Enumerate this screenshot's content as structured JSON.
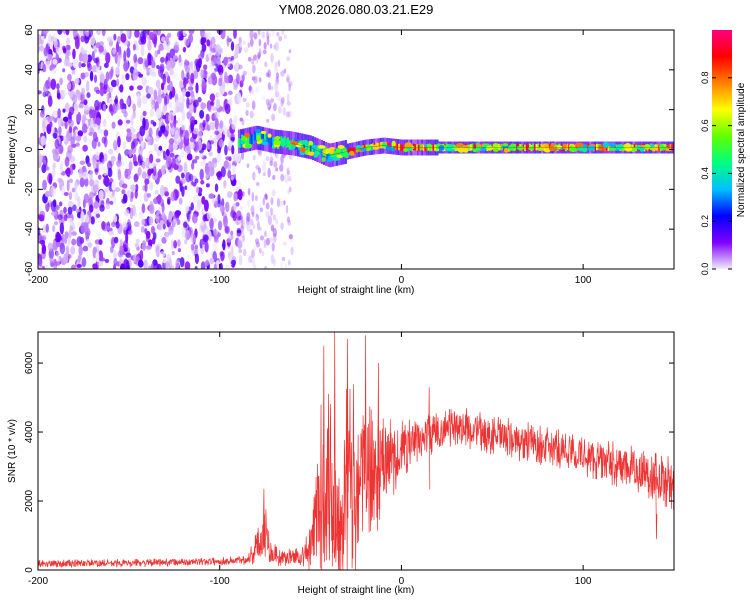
{
  "figure": {
    "title": "YM08.2026.080.03.21.E29"
  },
  "chart_data": [
    {
      "type": "heatmap",
      "name": "spectrogram",
      "title": "YM08.2026.080.03.21.E29",
      "xlabel": "Height of straight line (km)",
      "ylabel": "Frequency (Hz)",
      "xlim": [
        -200,
        150
      ],
      "ylim": [
        -60,
        60
      ],
      "xticks": [
        -200,
        -100,
        0,
        100
      ],
      "yticks": [
        -60,
        -40,
        -20,
        0,
        20,
        40,
        60
      ],
      "noise_region_x": [
        -200,
        -88
      ],
      "sparse_noise_region_x": [
        -88,
        -60
      ],
      "signal_start_x": -90,
      "ridge": [
        {
          "x": -90,
          "freq": 4
        },
        {
          "x": -80,
          "freq": 6
        },
        {
          "x": -70,
          "freq": 4
        },
        {
          "x": -60,
          "freq": 3
        },
        {
          "x": -50,
          "freq": 1
        },
        {
          "x": -40,
          "freq": -3
        },
        {
          "x": -30,
          "freq": -1
        },
        {
          "x": -20,
          "freq": 1
        },
        {
          "x": -10,
          "freq": 2
        },
        {
          "x": 0,
          "freq": 1
        },
        {
          "x": 20,
          "freq": 1
        },
        {
          "x": 50,
          "freq": 1
        },
        {
          "x": 80,
          "freq": 1
        },
        {
          "x": 110,
          "freq": 1
        },
        {
          "x": 150,
          "freq": 1
        }
      ],
      "colorbar": {
        "label": "Normalized spectral amplitude",
        "range": [
          0,
          1
        ],
        "ticks": [
          0,
          0.2,
          0.4,
          0.6,
          0.8
        ],
        "tick_labels": [
          "0.0",
          "0.2",
          "0.4",
          "0.6",
          "0.8"
        ],
        "colors": [
          "#f0ecfa",
          "#8000ff",
          "#0000ff",
          "#00c0ff",
          "#00ff80",
          "#60ff00",
          "#ffff00",
          "#ff8000",
          "#ff0000",
          "#ff0080"
        ]
      }
    },
    {
      "type": "line",
      "name": "snr",
      "xlabel": "Height of straight line (km)",
      "ylabel": "SNR (10 * v/v)",
      "xlim": [
        -200,
        150
      ],
      "ylim": [
        0,
        6900
      ],
      "xticks": [
        -200,
        -100,
        0,
        100
      ],
      "yticks": [
        0,
        2000,
        4000,
        6000
      ],
      "color": "#ee3333",
      "envelope": [
        {
          "x": -200,
          "base": 180,
          "amp": 120
        },
        {
          "x": -150,
          "base": 200,
          "amp": 120
        },
        {
          "x": -100,
          "base": 250,
          "amp": 120
        },
        {
          "x": -85,
          "base": 300,
          "amp": 150
        },
        {
          "x": -80,
          "base": 600,
          "amp": 500
        },
        {
          "x": -75,
          "base": 1200,
          "amp": 900
        },
        {
          "x": -72,
          "base": 500,
          "amp": 400
        },
        {
          "x": -65,
          "base": 350,
          "amp": 250
        },
        {
          "x": -55,
          "base": 400,
          "amp": 300
        },
        {
          "x": -50,
          "base": 600,
          "amp": 700
        },
        {
          "x": -45,
          "base": 2000,
          "amp": 2500
        },
        {
          "x": -40,
          "base": 3000,
          "amp": 3500
        },
        {
          "x": -35,
          "base": 1500,
          "amp": 2500
        },
        {
          "x": -30,
          "base": 2500,
          "amp": 3000
        },
        {
          "x": -20,
          "base": 2800,
          "amp": 2500
        },
        {
          "x": -10,
          "base": 3000,
          "amp": 1500
        },
        {
          "x": 0,
          "base": 3500,
          "amp": 900
        },
        {
          "x": 10,
          "base": 3800,
          "amp": 700
        },
        {
          "x": 30,
          "base": 4200,
          "amp": 600
        },
        {
          "x": 50,
          "base": 3900,
          "amp": 600
        },
        {
          "x": 80,
          "base": 3600,
          "amp": 600
        },
        {
          "x": 100,
          "base": 3300,
          "amp": 600
        },
        {
          "x": 130,
          "base": 2900,
          "amp": 700
        },
        {
          "x": 150,
          "base": 2500,
          "amp": 800
        }
      ],
      "peaks": [
        {
          "x": -76,
          "y": 2350
        },
        {
          "x": -43,
          "y": 6500
        },
        {
          "x": -37,
          "y": 6900
        },
        {
          "x": -30,
          "y": 6700
        },
        {
          "x": -20,
          "y": 6800
        },
        {
          "x": -13,
          "y": 6000
        },
        {
          "x": 15,
          "y": 5300
        },
        {
          "x": 140,
          "y": 900
        }
      ]
    }
  ]
}
